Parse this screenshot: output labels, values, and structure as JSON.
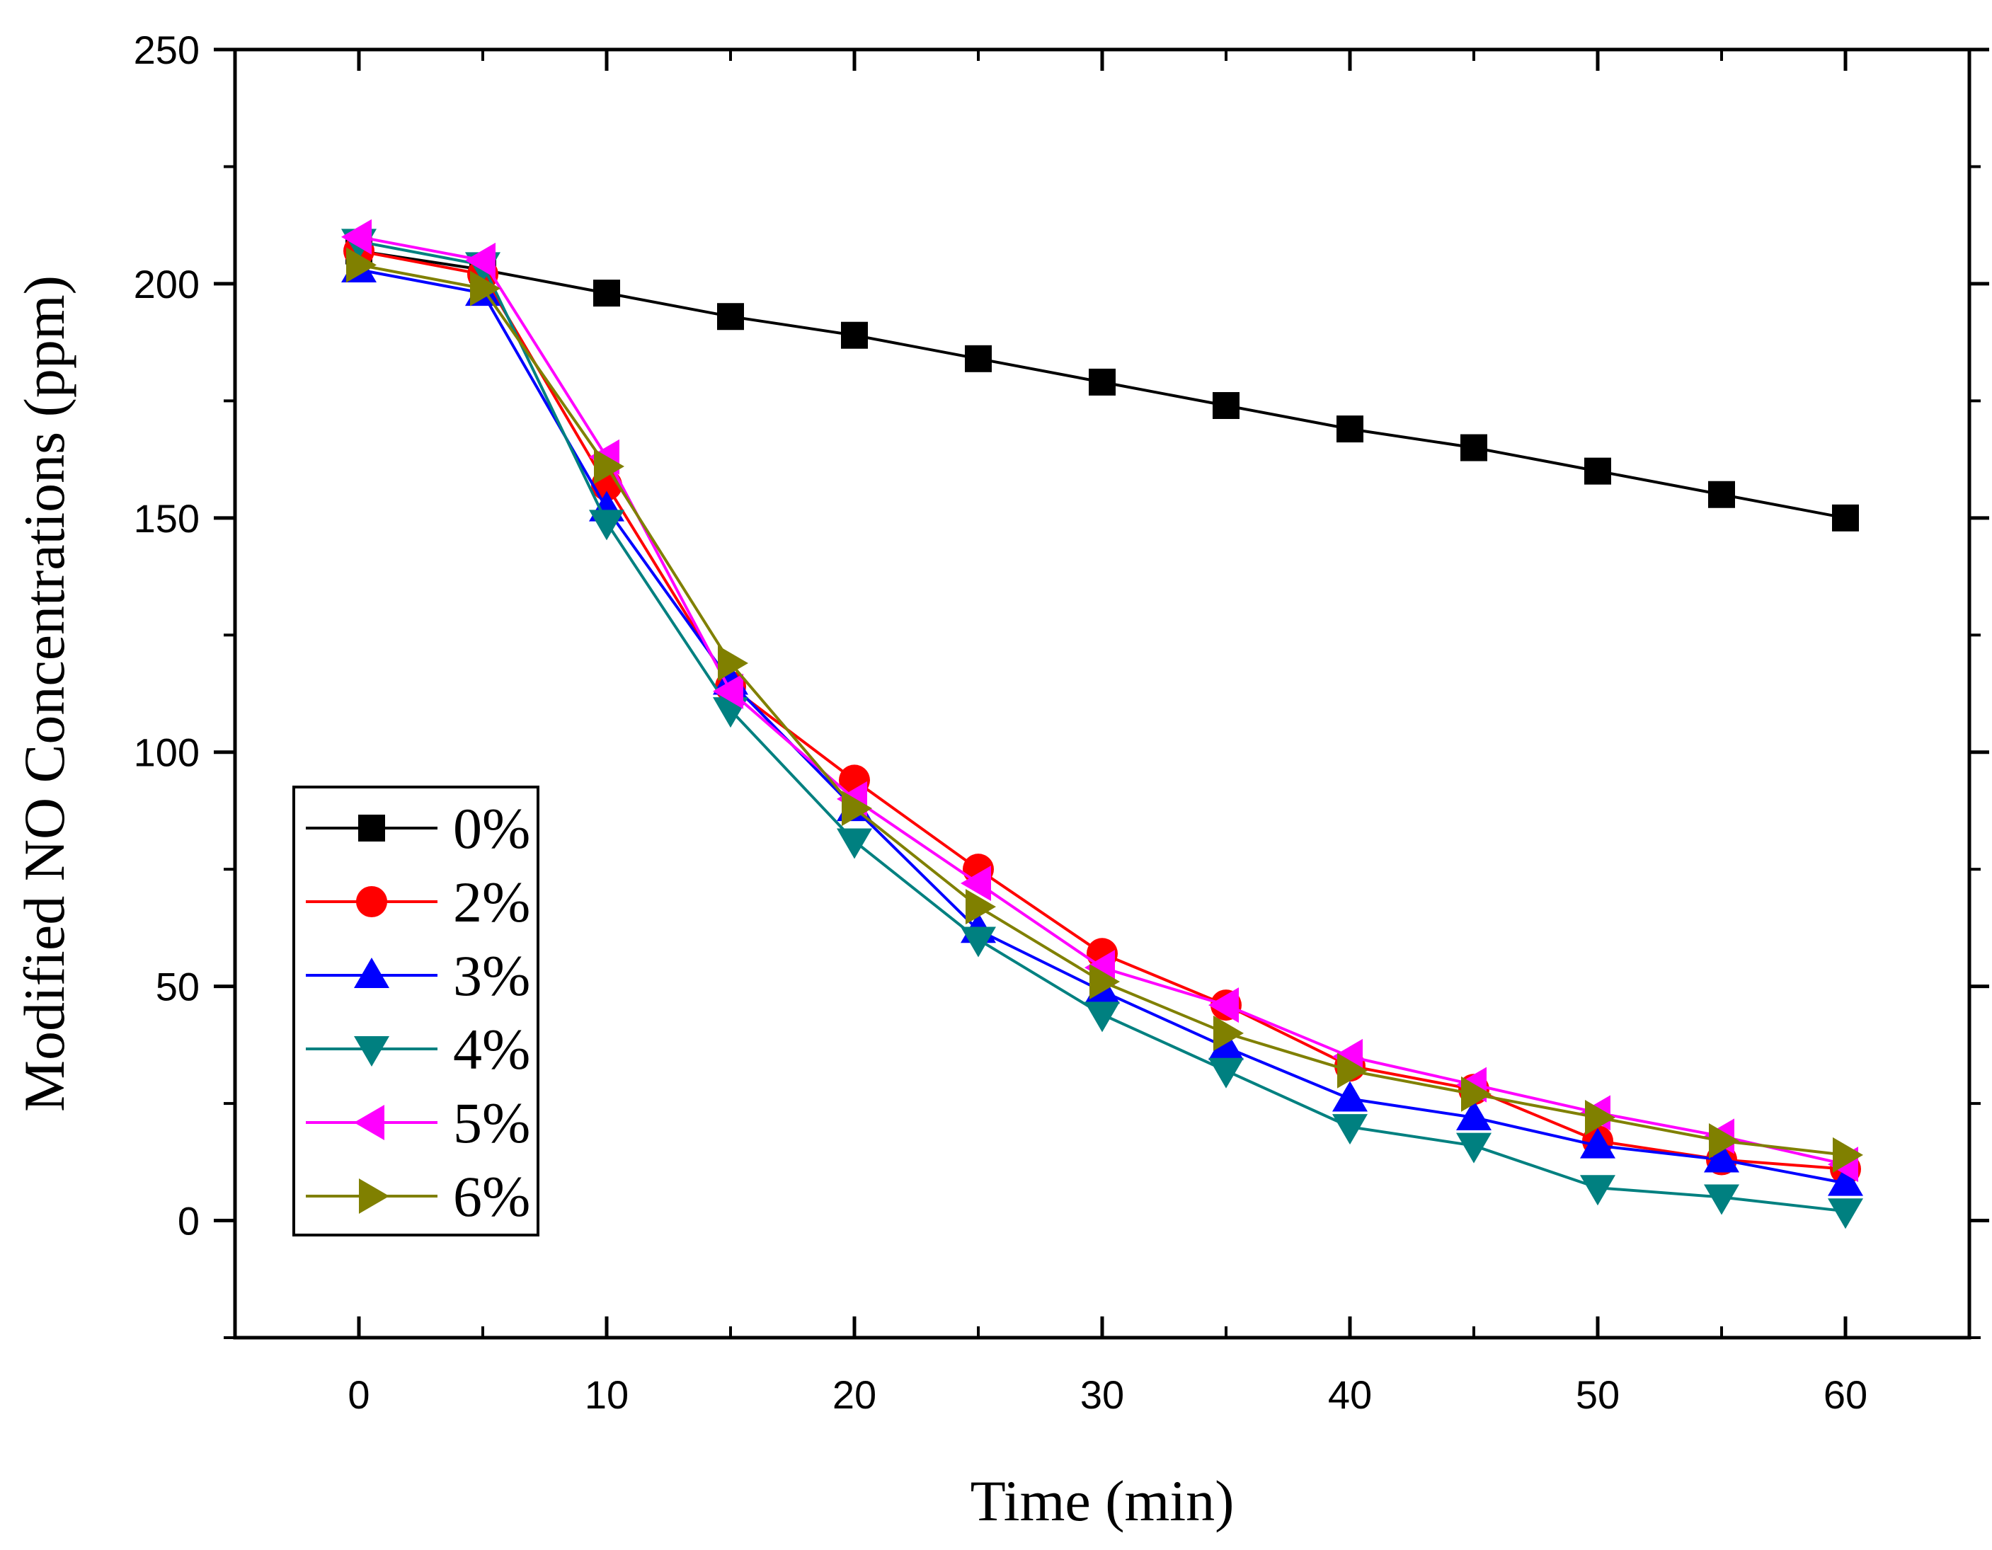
{
  "chart_data": {
    "type": "line",
    "title": "",
    "xlabel": "Time (min)",
    "ylabel": "Modified NO Concentrations (ppm)",
    "xlim": [
      -5,
      65
    ],
    "ylim": [
      -25,
      250
    ],
    "xticks": [
      0,
      10,
      20,
      30,
      40,
      50,
      60
    ],
    "yticks": [
      0,
      50,
      100,
      150,
      200,
      250
    ],
    "x": [
      0,
      5,
      10,
      15,
      20,
      25,
      30,
      35,
      40,
      45,
      50,
      55,
      60
    ],
    "legend_position": "bottom-left",
    "grid": false,
    "series": [
      {
        "name": "0%",
        "color": "#000000",
        "marker": "square",
        "values": [
          207,
          203,
          198,
          193,
          189,
          184,
          179,
          174,
          169,
          165,
          160,
          155,
          150
        ]
      },
      {
        "name": "2%",
        "color": "#ff0000",
        "marker": "circle",
        "values": [
          207,
          202,
          157,
          114,
          94,
          75,
          57,
          46,
          33,
          28,
          17,
          13,
          11
        ]
      },
      {
        "name": "3%",
        "color": "#0000ff",
        "marker": "triangle-up",
        "values": [
          203,
          198,
          152,
          115,
          88,
          62,
          49,
          37,
          26,
          22,
          16,
          13,
          8
        ]
      },
      {
        "name": "4%",
        "color": "#008080",
        "marker": "triangle-down",
        "values": [
          209,
          204,
          149,
          109,
          81,
          60,
          44,
          32,
          20,
          16,
          7,
          5,
          2
        ]
      },
      {
        "name": "5%",
        "color": "#ff00ff",
        "marker": "triangle-left",
        "values": [
          210,
          205,
          163,
          113,
          90,
          72,
          54,
          46,
          35,
          29,
          23,
          18,
          12
        ]
      },
      {
        "name": "6%",
        "color": "#808000",
        "marker": "triangle-right",
        "values": [
          204,
          199,
          161,
          119,
          88,
          67,
          51,
          40,
          32,
          27,
          22,
          17,
          14
        ]
      }
    ]
  }
}
